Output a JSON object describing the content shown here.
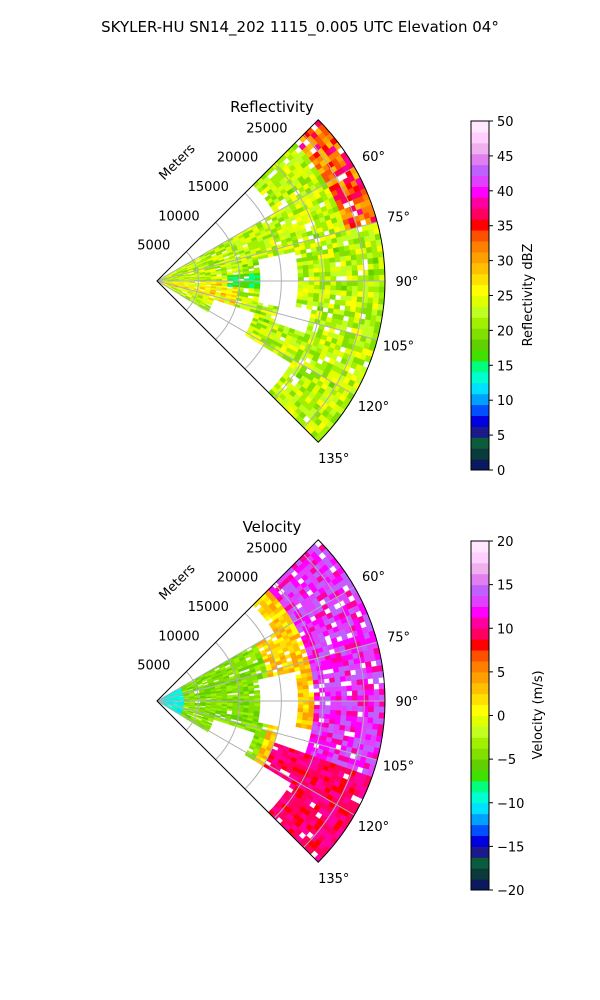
{
  "page": {
    "title": "SKYLER-HU  SN14_202  1115_0.005 UTC Elevation 04°"
  },
  "chart_data": [
    {
      "type": "heatmap",
      "title": "Reflectivity",
      "range_axis_label": "Meters",
      "range_ticks": [
        5000,
        10000,
        15000,
        20000,
        25000
      ],
      "range_tick_labels": [
        "5000",
        "10000",
        "15000",
        "20000",
        "25000"
      ],
      "range_max": 27500,
      "azimuth_range_deg": [
        45,
        135
      ],
      "azimuth_ticks_deg": [
        60,
        75,
        90,
        105,
        120,
        135
      ],
      "azimuth_tick_labels": [
        "60°",
        "75°",
        "90°",
        "105°",
        "120°",
        "135°"
      ],
      "grid": true,
      "colorbar": {
        "label": "Reflectivity dBZ",
        "min": 0,
        "max": 50,
        "ticks": [
          0,
          5,
          10,
          15,
          20,
          25,
          30,
          35,
          40,
          45,
          50
        ],
        "tick_labels": [
          "0",
          "5",
          "10",
          "15",
          "20",
          "25",
          "30",
          "35",
          "40",
          "45",
          "50"
        ],
        "colors": [
          "#0a1a5c",
          "#0b3a3a",
          "#0b5c3c",
          "#1a1a8a",
          "#0000e0",
          "#0050ff",
          "#00a0ff",
          "#00e0ff",
          "#00ffd0",
          "#00ff80",
          "#40e000",
          "#60d000",
          "#80e000",
          "#a0f000",
          "#c0ff20",
          "#e0ff00",
          "#ffff00",
          "#ffe000",
          "#ffc000",
          "#ffa000",
          "#ff8000",
          "#ff5000",
          "#ff0000",
          "#ff0060",
          "#ff00a0",
          "#ff00ff",
          "#e040ff",
          "#c060ff",
          "#e080f0",
          "#f0b0f0",
          "#ffd0ff",
          "#ffe8ff"
        ]
      }
    },
    {
      "type": "heatmap",
      "title": "Velocity",
      "range_axis_label": "Meters",
      "range_ticks": [
        5000,
        10000,
        15000,
        20000,
        25000
      ],
      "range_tick_labels": [
        "5000",
        "10000",
        "15000",
        "20000",
        "25000"
      ],
      "range_max": 27500,
      "azimuth_range_deg": [
        45,
        135
      ],
      "azimuth_ticks_deg": [
        60,
        75,
        90,
        105,
        120,
        135
      ],
      "azimuth_tick_labels": [
        "60°",
        "75°",
        "90°",
        "105°",
        "120°",
        "135°"
      ],
      "grid": true,
      "colorbar": {
        "label": "Velocity (m/s)",
        "min": -20,
        "max": 20,
        "ticks": [
          -20,
          -15,
          -10,
          -5,
          0,
          5,
          10,
          15,
          20
        ],
        "tick_labels": [
          "−20",
          "−15",
          "−10",
          "−5",
          "0",
          "5",
          "10",
          "15",
          "20"
        ],
        "colors": [
          "#0a1a5c",
          "#0b3a3a",
          "#0b5c3c",
          "#1a1a8a",
          "#0000e0",
          "#0050ff",
          "#00a0ff",
          "#00e0ff",
          "#00ffd0",
          "#00ff80",
          "#40e000",
          "#60d000",
          "#80e000",
          "#a0f000",
          "#c0ff20",
          "#e0ff00",
          "#ffff00",
          "#ffe000",
          "#ffc000",
          "#ffa000",
          "#ff8000",
          "#ff5000",
          "#ff0000",
          "#ff0060",
          "#ff00a0",
          "#ff00ff",
          "#e040ff",
          "#c060ff",
          "#e080f0",
          "#f0b0f0",
          "#ffd0ff",
          "#ffe8ff"
        ]
      }
    }
  ]
}
